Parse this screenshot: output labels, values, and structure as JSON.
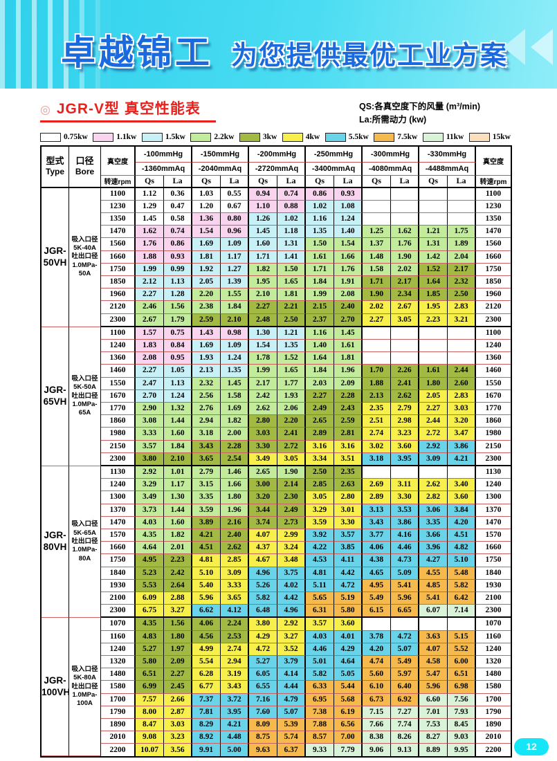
{
  "banner": {
    "brand": "卓越锦工",
    "slogan": "为您提供最优工业方案"
  },
  "title": {
    "bullet": "◎",
    "text": "JGR-V型  真空性能表"
  },
  "notes": [
    "QS:各真空度下的风量 (m³/min)",
    "La:所需动力 (kw)"
  ],
  "legend": [
    {
      "label": "0.75kw",
      "color": "#ffffff"
    },
    {
      "label": "1.1kw",
      "color": "#f9d4ee"
    },
    {
      "label": "1.5kw",
      "color": "#c7f0f7"
    },
    {
      "label": "2.2kw",
      "color": "#c2ec9b"
    },
    {
      "label": "3kw",
      "color": "#a2b944"
    },
    {
      "label": "4kw",
      "color": "#f7f04c"
    },
    {
      "label": "5.5kw",
      "color": "#68d3e9"
    },
    {
      "label": "7.5kw",
      "color": "#f5b94e"
    },
    {
      "label": "11kw",
      "color": "#d9f3d9"
    },
    {
      "label": "15kw",
      "color": "#f9dfbd"
    }
  ],
  "power_colors": {
    "w": "#ffffff",
    "p": "#f9d4ee",
    "c": "#c7f0f7",
    "g": "#c2ec9b",
    "o": "#a2b944",
    "y": "#f7f04c",
    "b": "#68d3e9",
    "r": "#f5b94e",
    "e": "#d9f3d9",
    "t": "#f9dfbd",
    "-": "#ffffff"
  },
  "table": {
    "headers": {
      "type": "型式",
      "type_en": "Type",
      "bore": "口径",
      "bore_en": "Bore",
      "vacuum": "真空度",
      "rpm": "转速rpm",
      "qs": "Qs",
      "la": "La"
    },
    "pressure_columns": [
      {
        "mmhg": "-100mmHg",
        "mmaq": "-1360mmAq"
      },
      {
        "mmhg": "-150mmHg",
        "mmaq": "-2040mmAq"
      },
      {
        "mmhg": "-200mmHg",
        "mmaq": "-2720mmAq"
      },
      {
        "mmhg": "-250mmHg",
        "mmaq": "-3400mmAq"
      },
      {
        "mmhg": "-300mmHg",
        "mmaq": "-4080mmAq"
      },
      {
        "mmhg": "-330mmHg",
        "mmaq": "-4488mmAq"
      }
    ],
    "blocks": [
      {
        "model_line1": "JGR-",
        "model_line2": "50VH",
        "bore_lines": [
          "吸入口径",
          "5K-40A",
          "吐出口径",
          "1.0MPa-",
          "50A"
        ],
        "rows": [
          {
            "rpm": "1100",
            "v": [
              "1.12",
              "0.36",
              "1.03",
              "0.55",
              "0.94",
              "0.74",
              "0.86",
              "0.93",
              "",
              "",
              "",
              ""
            ],
            "c": "wwwwpppp----"
          },
          {
            "rpm": "1230",
            "v": [
              "1.29",
              "0.47",
              "1.20",
              "0.67",
              "1.10",
              "0.88",
              "1.02",
              "1.08",
              "",
              "",
              "",
              ""
            ],
            "c": "wwwwppcc----"
          },
          {
            "rpm": "1350",
            "v": [
              "1.45",
              "0.58",
              "1.36",
              "0.80",
              "1.26",
              "1.02",
              "1.16",
              "1.24",
              "",
              "",
              "",
              ""
            ],
            "c": "wwppcccc----"
          },
          {
            "rpm": "1470",
            "v": [
              "1.62",
              "0.74",
              "1.54",
              "0.96",
              "1.45",
              "1.18",
              "1.35",
              "1.40",
              "1.25",
              "1.62",
              "1.21",
              "1.75"
            ],
            "c": "ppppccccgggg"
          },
          {
            "rpm": "1560",
            "v": [
              "1.76",
              "0.86",
              "1.69",
              "1.09",
              "1.60",
              "1.31",
              "1.50",
              "1.54",
              "1.37",
              "1.76",
              "1.31",
              "1.89"
            ],
            "c": "ppccccgggggg"
          },
          {
            "rpm": "1660",
            "v": [
              "1.88",
              "0.93",
              "1.81",
              "1.17",
              "1.71",
              "1.41",
              "1.61",
              "1.66",
              "1.48",
              "1.90",
              "1.42",
              "2.04"
            ],
            "c": "ppccccgggggg"
          },
          {
            "rpm": "1750",
            "v": [
              "1.99",
              "0.99",
              "1.92",
              "1.27",
              "1.82",
              "1.50",
              "1.71",
              "1.76",
              "1.58",
              "2.02",
              "1.52",
              "2.17"
            ],
            "c": "ccccggggggoo"
          },
          {
            "rpm": "1850",
            "v": [
              "2.12",
              "1.13",
              "2.05",
              "1.39",
              "1.95",
              "1.65",
              "1.84",
              "1.91",
              "1.71",
              "2.17",
              "1.64",
              "2.32"
            ],
            "c": "ccccggggoooo"
          },
          {
            "rpm": "1960",
            "v": [
              "2.27",
              "1.28",
              "2.20",
              "1.55",
              "2.10",
              "1.81",
              "1.99",
              "2.08",
              "1.90",
              "2.34",
              "1.85",
              "2.50"
            ],
            "c": "ccggggggoooo"
          },
          {
            "rpm": "2120",
            "v": [
              "2.46",
              "1.56",
              "2.38",
              "1.84",
              "2.27",
              "2.21",
              "2.15",
              "2.40",
              "2.02",
              "2.67",
              "1.95",
              "2.83"
            ],
            "c": "ggggooooyyyy"
          },
          {
            "rpm": "2300",
            "v": [
              "2.67",
              "1.79",
              "2.59",
              "2.10",
              "2.48",
              "2.50",
              "2.37",
              "2.70",
              "2.27",
              "3.05",
              "2.23",
              "3.21"
            ],
            "c": "ggooooooyyyy"
          }
        ]
      },
      {
        "model_line1": "JGR-",
        "model_line2": "65VH",
        "bore_lines": [
          "吸入口径",
          "5K-50A",
          "吐出口径",
          "1.0MPa-",
          "65A"
        ],
        "rows": [
          {
            "rpm": "1100",
            "v": [
              "1.57",
              "0.75",
              "1.43",
              "0.98",
              "1.30",
              "1.21",
              "1.16",
              "1.45",
              "",
              "",
              "",
              ""
            ],
            "c": "ppppccgg----"
          },
          {
            "rpm": "1240",
            "v": [
              "1.83",
              "0.84",
              "1.69",
              "1.09",
              "1.54",
              "1.35",
              "1.40",
              "1.61",
              "",
              "",
              "",
              ""
            ],
            "c": "ppccccgg----"
          },
          {
            "rpm": "1360",
            "v": [
              "2.08",
              "0.95",
              "1.93",
              "1.24",
              "1.78",
              "1.52",
              "1.64",
              "1.81",
              "",
              "",
              "",
              ""
            ],
            "c": "ppccgggg----"
          },
          {
            "rpm": "1460",
            "v": [
              "2.27",
              "1.05",
              "2.13",
              "1.35",
              "1.99",
              "1.65",
              "1.84",
              "1.96",
              "1.70",
              "2.26",
              "1.61",
              "2.44"
            ],
            "c": "ccccggggoooo"
          },
          {
            "rpm": "1550",
            "v": [
              "2.47",
              "1.13",
              "2.32",
              "1.45",
              "2.17",
              "1.77",
              "2.03",
              "2.09",
              "1.88",
              "2.41",
              "1.80",
              "2.60"
            ],
            "c": "ccggggggoooo"
          },
          {
            "rpm": "1670",
            "v": [
              "2.70",
              "1.24",
              "2.56",
              "1.58",
              "2.42",
              "1.93",
              "2.27",
              "2.28",
              "2.13",
              "2.62",
              "2.05",
              "2.83"
            ],
            "c": "ccggggooooyy"
          },
          {
            "rpm": "1770",
            "v": [
              "2.90",
              "1.32",
              "2.76",
              "1.69",
              "2.62",
              "2.06",
              "2.49",
              "2.43",
              "2.35",
              "2.79",
              "2.27",
              "3.03"
            ],
            "c": "ggggggooyyyy"
          },
          {
            "rpm": "1860",
            "v": [
              "3.08",
              "1.44",
              "2.94",
              "1.82",
              "2.80",
              "2.20",
              "2.65",
              "2.59",
              "2.51",
              "2.98",
              "2.44",
              "3.20"
            ],
            "c": "ggggooooyyyy"
          },
          {
            "rpm": "1980",
            "v": [
              "3.33",
              "1.60",
              "3.18",
              "2.00",
              "3.03",
              "2.41",
              "2.89",
              "2.81",
              "2.74",
              "3.23",
              "2.72",
              "3.47"
            ],
            "c": "ggggooooyyyy"
          },
          {
            "rpm": "2150",
            "v": [
              "3.57",
              "1.84",
              "3.43",
              "2.28",
              "3.30",
              "2.72",
              "3.16",
              "3.16",
              "3.02",
              "3.60",
              "2.92",
              "3.86"
            ],
            "c": "ggooooyyyybb"
          },
          {
            "rpm": "2300",
            "v": [
              "3.80",
              "2.10",
              "3.65",
              "2.54",
              "3.49",
              "3.05",
              "3.34",
              "3.51",
              "3.18",
              "3.95",
              "3.09",
              "4.21"
            ],
            "c": "ooooyyyybbbb"
          }
        ]
      },
      {
        "model_line1": "JGR-",
        "model_line2": "80VH",
        "bore_lines": [
          "吸入口径",
          "5K-65A",
          "吐出口径",
          "1.0MPa-",
          "80A"
        ],
        "rows": [
          {
            "rpm": "1130",
            "v": [
              "2.92",
              "1.01",
              "2.79",
              "1.46",
              "2.65",
              "1.90",
              "2.50",
              "2.35",
              "",
              "",
              "",
              ""
            ],
            "c": "ggggggoo----"
          },
          {
            "rpm": "1240",
            "v": [
              "3.29",
              "1.17",
              "3.15",
              "1.66",
              "3.00",
              "2.14",
              "2.85",
              "2.63",
              "2.69",
              "3.11",
              "2.62",
              "3.40"
            ],
            "c": "ggggooooyyyy"
          },
          {
            "rpm": "1300",
            "v": [
              "3.49",
              "1.30",
              "3.35",
              "1.80",
              "3.20",
              "2.30",
              "3.05",
              "2.80",
              "2.89",
              "3.30",
              "2.82",
              "3.60"
            ],
            "c": "ggggooyyyyyy"
          },
          {
            "rpm": "1370",
            "v": [
              "3.73",
              "1.44",
              "3.59",
              "1.96",
              "3.44",
              "2.49",
              "3.29",
              "3.01",
              "3.13",
              "3.53",
              "3.06",
              "3.84"
            ],
            "c": "ggggooyybbbb"
          },
          {
            "rpm": "1470",
            "v": [
              "4.03",
              "1.60",
              "3.89",
              "2.16",
              "3.74",
              "2.73",
              "3.59",
              "3.30",
              "3.43",
              "3.86",
              "3.35",
              "4.20"
            ],
            "c": "ggooooyybbbb"
          },
          {
            "rpm": "1570",
            "v": [
              "4.35",
              "1.82",
              "4.21",
              "2.40",
              "4.07",
              "2.99",
              "3.92",
              "3.57",
              "3.77",
              "4.16",
              "3.66",
              "4.51"
            ],
            "c": "ggooyybbbbbb"
          },
          {
            "rpm": "1660",
            "v": [
              "4.64",
              "2.01",
              "4.51",
              "2.62",
              "4.37",
              "3.24",
              "4.22",
              "3.85",
              "4.06",
              "4.46",
              "3.96",
              "4.82"
            ],
            "c": "ggooyybbbbbb"
          },
          {
            "rpm": "1750",
            "v": [
              "4.95",
              "2.23",
              "4.81",
              "2.85",
              "4.67",
              "3.48",
              "4.53",
              "4.11",
              "4.38",
              "4.73",
              "4.27",
              "5.10"
            ],
            "c": "ooyyyybbbbbb"
          },
          {
            "rpm": "1840",
            "v": [
              "5.23",
              "2.42",
              "5.10",
              "3.09",
              "4.96",
              "3.75",
              "4.81",
              "4.42",
              "4.65",
              "5.09",
              "4.55",
              "5.48"
            ],
            "c": "ooyybbbbbbrr"
          },
          {
            "rpm": "1930",
            "v": [
              "5.53",
              "2.64",
              "5.40",
              "3.33",
              "5.26",
              "4.02",
              "5.11",
              "4.72",
              "4.95",
              "5.41",
              "4.85",
              "5.82"
            ],
            "c": "ooyybbbbrrrr"
          },
          {
            "rpm": "2100",
            "v": [
              "6.09",
              "2.88",
              "5.96",
              "3.65",
              "5.82",
              "4.42",
              "5.65",
              "5.19",
              "5.49",
              "5.96",
              "5.41",
              "6.42"
            ],
            "c": "yyyybbrrrrrr"
          },
          {
            "rpm": "2300",
            "v": [
              "6.75",
              "3.27",
              "6.62",
              "4.12",
              "6.48",
              "4.96",
              "6.31",
              "5.80",
              "6.15",
              "6.65",
              "6.07",
              "7.14"
            ],
            "c": "yybbbbrrrree"
          }
        ]
      },
      {
        "model_line1": "JGR-",
        "model_line2": "100VH",
        "bore_lines": [
          "吸入口径",
          "5K-80A",
          "吐出口径",
          "1.0MPa-",
          "100A"
        ],
        "rows": [
          {
            "rpm": "1070",
            "v": [
              "4.35",
              "1.56",
              "4.06",
              "2.24",
              "3.80",
              "2.92",
              "3.57",
              "3.60",
              "",
              "",
              "",
              ""
            ],
            "c": "ooooyyyy----"
          },
          {
            "rpm": "1160",
            "v": [
              "4.83",
              "1.80",
              "4.56",
              "2.53",
              "4.29",
              "3.27",
              "4.03",
              "4.01",
              "3.78",
              "4.72",
              "3.63",
              "5.15"
            ],
            "c": "ooooyybbbbrr"
          },
          {
            "rpm": "1240",
            "v": [
              "5.27",
              "1.97",
              "4.99",
              "2.74",
              "4.72",
              "3.52",
              "4.46",
              "4.29",
              "4.20",
              "5.07",
              "4.07",
              "5.52"
            ],
            "c": "ooyyyybbbbrr"
          },
          {
            "rpm": "1320",
            "v": [
              "5.80",
              "2.09",
              "5.54",
              "2.94",
              "5.27",
              "3.79",
              "5.01",
              "4.64",
              "4.74",
              "5.49",
              "4.58",
              "6.00"
            ],
            "c": "ooyybbbbrrrr"
          },
          {
            "rpm": "1480",
            "v": [
              "6.51",
              "2.27",
              "6.28",
              "3.19",
              "6.05",
              "4.14",
              "5.82",
              "5.05",
              "5.60",
              "5.97",
              "5.47",
              "6.51"
            ],
            "c": "ooyybbbbrrrr"
          },
          {
            "rpm": "1580",
            "v": [
              "6.99",
              "2.45",
              "6.77",
              "3.43",
              "6.55",
              "4.44",
              "6.33",
              "5.44",
              "6.10",
              "6.40",
              "5.96",
              "6.98"
            ],
            "c": "ooyybbrrrrrr"
          },
          {
            "rpm": "1700",
            "v": [
              "7.57",
              "2.66",
              "7.37",
              "3.72",
              "7.16",
              "4.79",
              "6.95",
              "5.68",
              "6.73",
              "6.92",
              "6.60",
              "7.56"
            ],
            "c": "yybbbbrrrree"
          },
          {
            "rpm": "1790",
            "v": [
              "8.00",
              "2.87",
              "7.81",
              "3.95",
              "7.60",
              "5.07",
              "7.38",
              "6.19",
              "7.15",
              "7.27",
              "7.01",
              "7.93"
            ],
            "c": "yybbbbrreeee"
          },
          {
            "rpm": "1890",
            "v": [
              "8.47",
              "3.03",
              "8.29",
              "4.21",
              "8.09",
              "5.39",
              "7.88",
              "6.56",
              "7.66",
              "7.74",
              "7.53",
              "8.45"
            ],
            "c": "yybbrrrreeee"
          },
          {
            "rpm": "2010",
            "v": [
              "9.08",
              "3.23",
              "8.92",
              "4.48",
              "8.75",
              "5.74",
              "8.57",
              "7.00",
              "8.38",
              "8.26",
              "8.27",
              "9.03"
            ],
            "c": "yybbrrrreeee"
          },
          {
            "rpm": "2200",
            "v": [
              "10.07",
              "3.56",
              "9.91",
              "5.00",
              "9.63",
              "6.37",
              "9.33",
              "7.79",
              "9.06",
              "9.13",
              "8.89",
              "9.95"
            ],
            "c": "yybbrreeeeee"
          }
        ]
      }
    ]
  },
  "page_number": "12"
}
